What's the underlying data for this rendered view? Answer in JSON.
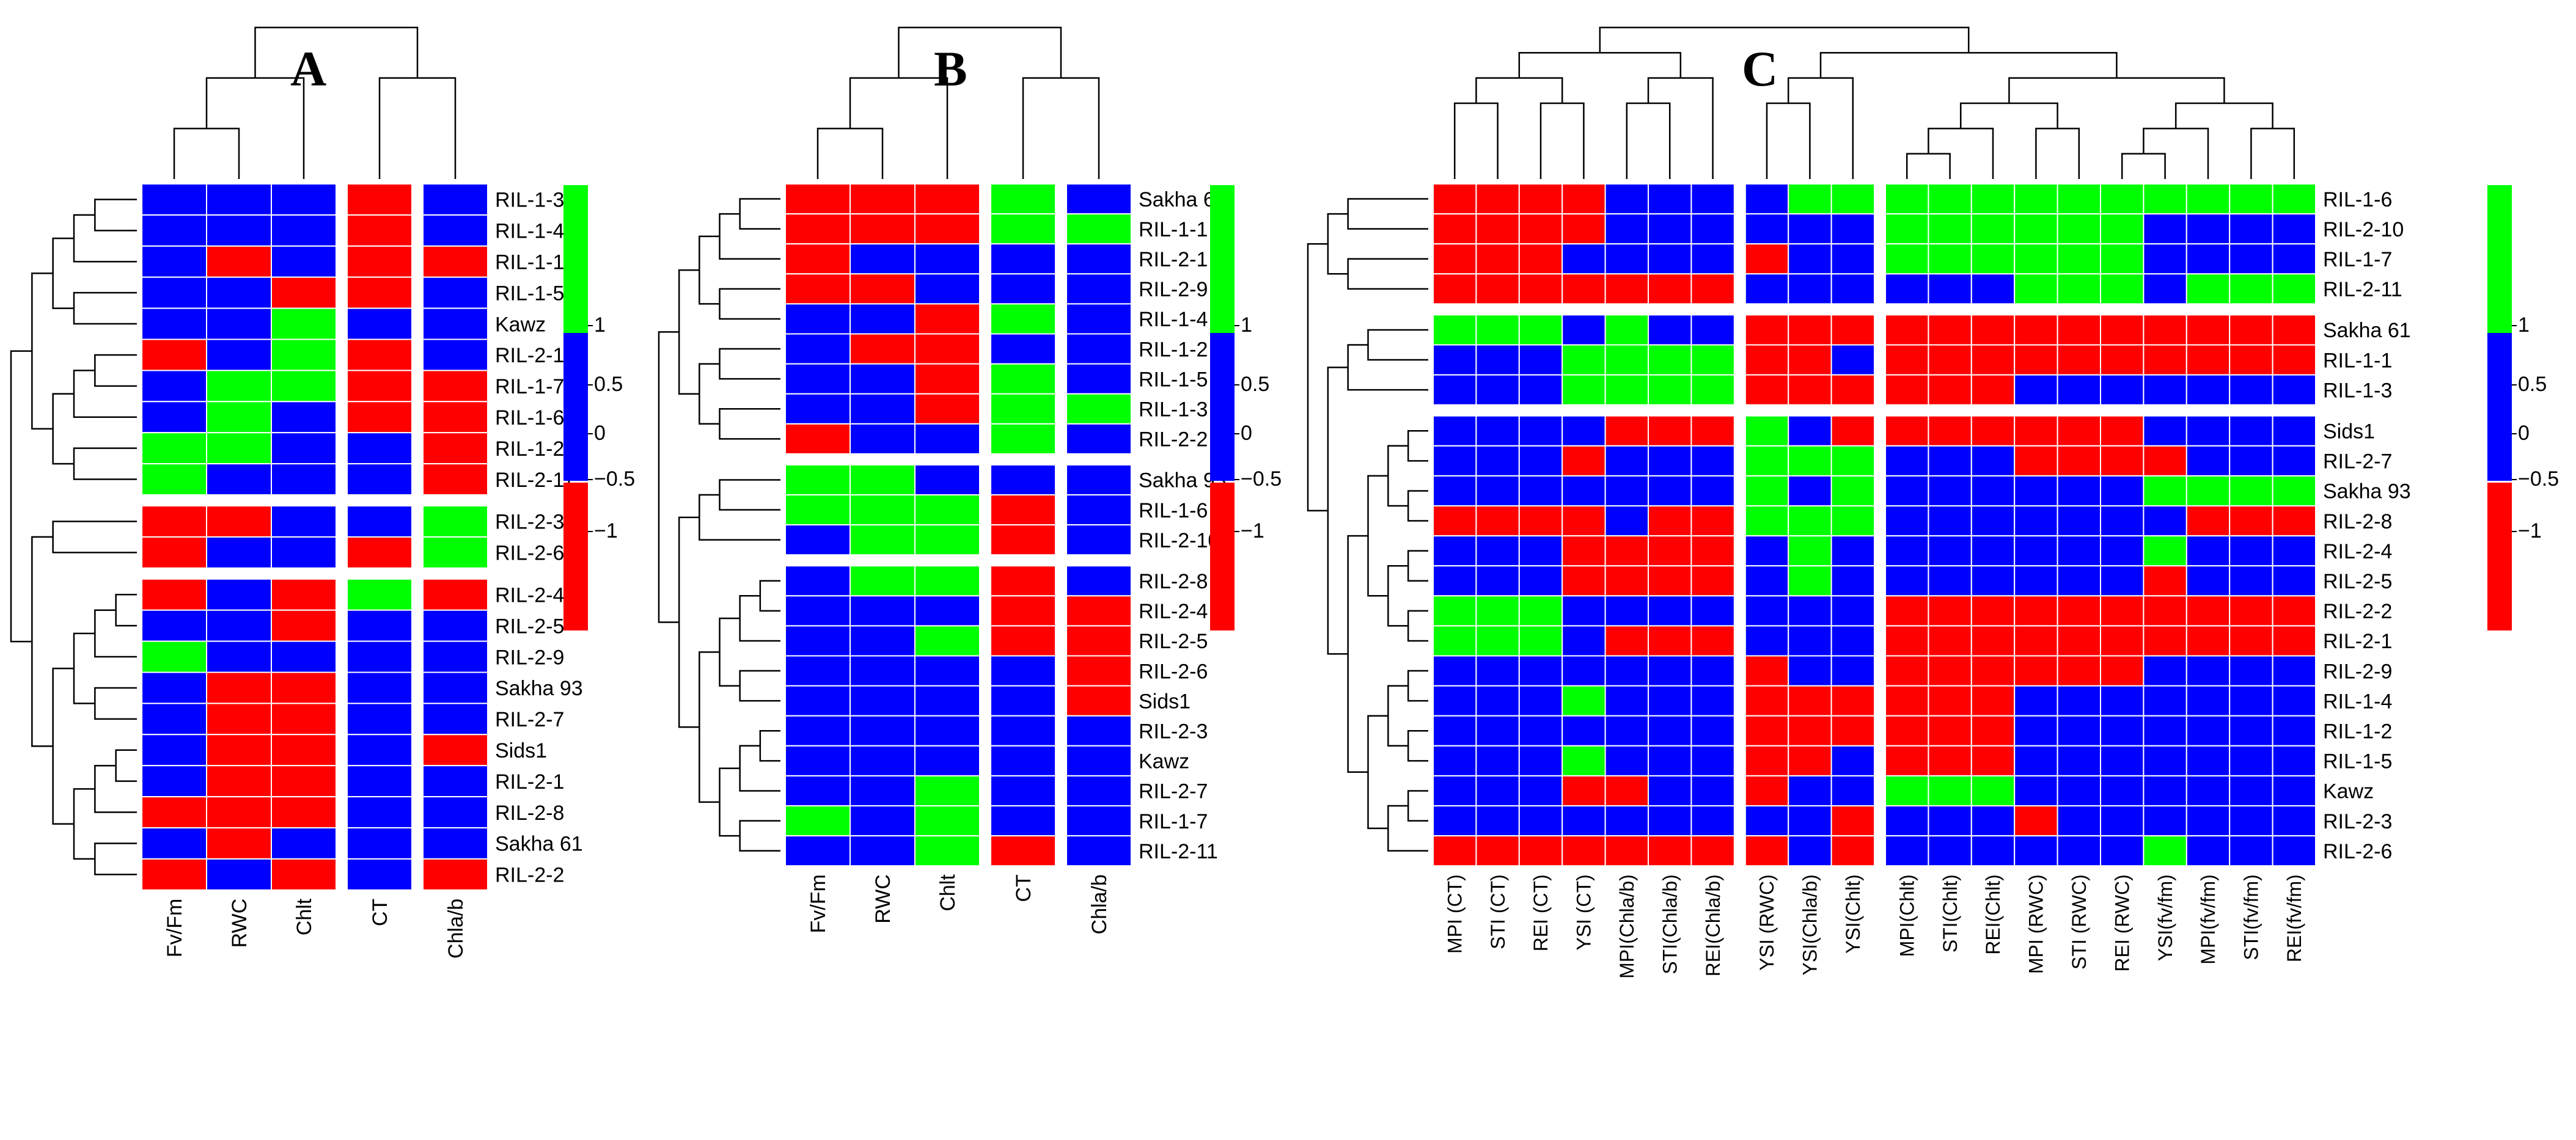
{
  "chart_data": [
    {
      "type": "heatmap",
      "title": "A",
      "columns": [
        "Fv/Fm",
        "RWC",
        "Chlt",
        "CT",
        "Chla/b"
      ],
      "column_groups": [
        3,
        1,
        1
      ],
      "rows": [
        "RIL-1-3",
        "RIL-1-4",
        "RIL-1-1",
        "RIL-1-5",
        "Kawz",
        "RIL-2-10",
        "RIL-1-7",
        "RIL-1-6",
        "RIL-1-2",
        "RIL-2-11",
        "RIL-2-3",
        "RIL-2-6",
        "RIL-2-4",
        "RIL-2-5",
        "RIL-2-9",
        "Sakha 93",
        "RIL-2-7",
        "Sids1",
        "RIL-2-1",
        "RIL-2-8",
        "Sakha 61",
        "RIL-2-2"
      ],
      "row_groups": [
        10,
        2,
        10
      ],
      "values": [
        [
          0,
          0,
          0,
          -1,
          0
        ],
        [
          0,
          0,
          0,
          -1,
          0
        ],
        [
          0,
          -1,
          0,
          -1,
          -1
        ],
        [
          0,
          0,
          -1,
          -1,
          0
        ],
        [
          0,
          0,
          1,
          0,
          0
        ],
        [
          -1,
          0,
          1,
          -1,
          0
        ],
        [
          0,
          1,
          1,
          -1,
          -1
        ],
        [
          0,
          1,
          0,
          -1,
          -1
        ],
        [
          1,
          1,
          0,
          0,
          -1
        ],
        [
          1,
          0,
          0,
          0,
          -1
        ],
        [
          -1,
          -1,
          0,
          0,
          1
        ],
        [
          -1,
          0,
          0,
          -1,
          1
        ],
        [
          -1,
          0,
          -1,
          1,
          -1
        ],
        [
          0,
          0,
          -1,
          0,
          0
        ],
        [
          1,
          0,
          0,
          0,
          0
        ],
        [
          0,
          -1,
          -1,
          0,
          0
        ],
        [
          0,
          -1,
          -1,
          0,
          0
        ],
        [
          0,
          -1,
          -1,
          0,
          -1
        ],
        [
          0,
          -1,
          -1,
          0,
          0
        ],
        [
          -1,
          -1,
          -1,
          0,
          0
        ],
        [
          0,
          -1,
          0,
          0,
          0
        ],
        [
          -1,
          0,
          -1,
          0,
          -1
        ]
      ],
      "legend_ticks": [
        "1",
        "0.5",
        "0",
        "−0.5",
        "−1"
      ]
    },
    {
      "type": "heatmap",
      "title": "B",
      "columns": [
        "Fv/Fm",
        "RWC",
        "Chlt",
        "CT",
        "Chla/b"
      ],
      "column_groups": [
        3,
        1,
        1
      ],
      "rows": [
        "Sakha 61",
        "RIL-1-1",
        "RIL-2-1",
        "RIL-2-9",
        "RIL-1-4",
        "RIL-1-2",
        "RIL-1-5",
        "RIL-1-3",
        "RIL-2-2",
        "Sakha 93",
        "RIL-1-6",
        "RIL-2-10",
        "RIL-2-8",
        "RIL-2-4",
        "RIL-2-5",
        "RIL-2-6",
        "Sids1",
        "RIL-2-3",
        "Kawz",
        "RIL-2-7",
        "RIL-1-7",
        "RIL-2-11"
      ],
      "row_groups": [
        9,
        3,
        10
      ],
      "values": [
        [
          -1,
          -1,
          -1,
          1,
          0
        ],
        [
          -1,
          -1,
          -1,
          1,
          1
        ],
        [
          -1,
          0,
          0,
          0,
          0
        ],
        [
          -1,
          -1,
          0,
          0,
          0
        ],
        [
          0,
          0,
          -1,
          1,
          0
        ],
        [
          0,
          -1,
          -1,
          0,
          0
        ],
        [
          0,
          0,
          -1,
          1,
          0
        ],
        [
          0,
          0,
          -1,
          1,
          1
        ],
        [
          -1,
          0,
          0,
          1,
          0
        ],
        [
          1,
          1,
          0,
          0,
          0
        ],
        [
          1,
          1,
          1,
          -1,
          0
        ],
        [
          0,
          1,
          1,
          -1,
          0
        ],
        [
          0,
          1,
          1,
          -1,
          0
        ],
        [
          0,
          0,
          0,
          -1,
          -1
        ],
        [
          0,
          0,
          1,
          -1,
          -1
        ],
        [
          0,
          0,
          0,
          0,
          -1
        ],
        [
          0,
          0,
          0,
          0,
          -1
        ],
        [
          0,
          0,
          0,
          0,
          0
        ],
        [
          0,
          0,
          0,
          0,
          0
        ],
        [
          0,
          0,
          1,
          0,
          0
        ],
        [
          1,
          0,
          1,
          0,
          0
        ],
        [
          0,
          0,
          1,
          -1,
          0
        ]
      ],
      "legend_ticks": [
        "1",
        "0.5",
        "0",
        "−0.5",
        "−1"
      ]
    },
    {
      "type": "heatmap",
      "title": "C",
      "columns": [
        "MPI (CT)",
        "STI (CT)",
        "REI (CT)",
        "YSI (CT)",
        "MPI(Chla/b)",
        "STI(Chla/b)",
        "REI(Chla/b)",
        "YSI (RWC)",
        "YSI(Chla/b)",
        "YSI(Chlt)",
        "MPI(Chlt)",
        "STI(Chlt)",
        "REI(Chlt)",
        "MPI (RWC)",
        "STI (RWC)",
        "REI (RWC)",
        "YSI(fv/fm)",
        "MPI(fv/fm)",
        "STI(fv/fm)",
        "REI(fv/fm)"
      ],
      "column_groups": [
        7,
        3,
        10
      ],
      "rows": [
        "RIL-1-6",
        "RIL-2-10",
        "RIL-1-7",
        "RIL-2-11",
        "Sakha 61",
        "RIL-1-1",
        "RIL-1-3",
        "Sids1",
        "RIL-2-7",
        "Sakha 93",
        "RIL-2-8",
        "RIL-2-4",
        "RIL-2-5",
        "RIL-2-2",
        "RIL-2-1",
        "RIL-2-9",
        "RIL-1-4",
        "RIL-1-2",
        "RIL-1-5",
        "Kawz",
        "RIL-2-3",
        "RIL-2-6"
      ],
      "row_groups": [
        4,
        3,
        15
      ],
      "values": [
        [
          -1,
          -1,
          -1,
          -1,
          0,
          0,
          0,
          0,
          1,
          1,
          1,
          1,
          1,
          1,
          1,
          1,
          1,
          1,
          1,
          1
        ],
        [
          -1,
          -1,
          -1,
          -1,
          0,
          0,
          0,
          0,
          0,
          0,
          1,
          1,
          1,
          1,
          1,
          1,
          0,
          0,
          0,
          0
        ],
        [
          -1,
          -1,
          -1,
          0,
          0,
          0,
          0,
          -1,
          0,
          0,
          1,
          1,
          1,
          1,
          1,
          1,
          0,
          0,
          0,
          0
        ],
        [
          -1,
          -1,
          -1,
          -1,
          -1,
          -1,
          -1,
          0,
          0,
          0,
          0,
          0,
          0,
          1,
          1,
          1,
          0,
          1,
          1,
          1
        ],
        [
          1,
          1,
          1,
          0,
          1,
          0,
          0,
          -1,
          -1,
          -1,
          -1,
          -1,
          -1,
          -1,
          -1,
          -1,
          -1,
          -1,
          -1,
          -1
        ],
        [
          0,
          0,
          0,
          1,
          1,
          1,
          1,
          -1,
          -1,
          0,
          -1,
          -1,
          -1,
          -1,
          -1,
          -1,
          -1,
          -1,
          -1,
          -1
        ],
        [
          0,
          0,
          0,
          1,
          1,
          1,
          1,
          -1,
          -1,
          -1,
          -1,
          -1,
          -1,
          0,
          0,
          0,
          0,
          0,
          0,
          0
        ],
        [
          0,
          0,
          0,
          0,
          -1,
          -1,
          -1,
          1,
          0,
          -1,
          -1,
          -1,
          -1,
          -1,
          -1,
          -1,
          0,
          0,
          0,
          0
        ],
        [
          0,
          0,
          0,
          -1,
          0,
          0,
          0,
          1,
          1,
          1,
          0,
          0,
          0,
          -1,
          -1,
          -1,
          -1,
          0,
          0,
          0
        ],
        [
          0,
          0,
          0,
          0,
          0,
          0,
          0,
          1,
          0,
          1,
          0,
          0,
          0,
          0,
          0,
          0,
          1,
          1,
          1,
          1
        ],
        [
          -1,
          -1,
          -1,
          -1,
          0,
          -1,
          -1,
          1,
          1,
          1,
          0,
          0,
          0,
          0,
          0,
          0,
          0,
          -1,
          -1,
          -1
        ],
        [
          0,
          0,
          0,
          -1,
          -1,
          -1,
          -1,
          0,
          1,
          0,
          0,
          0,
          0,
          0,
          0,
          0,
          1,
          0,
          0,
          0
        ],
        [
          0,
          0,
          0,
          -1,
          -1,
          -1,
          -1,
          0,
          1,
          0,
          0,
          0,
          0,
          0,
          0,
          0,
          -1,
          0,
          0,
          0
        ],
        [
          1,
          1,
          1,
          0,
          0,
          0,
          0,
          0,
          0,
          0,
          -1,
          -1,
          -1,
          -1,
          -1,
          -1,
          -1,
          -1,
          -1,
          -1
        ],
        [
          1,
          1,
          1,
          0,
          -1,
          -1,
          -1,
          0,
          0,
          0,
          -1,
          -1,
          -1,
          -1,
          -1,
          -1,
          -1,
          -1,
          -1,
          -1
        ],
        [
          0,
          0,
          0,
          0,
          0,
          0,
          0,
          -1,
          0,
          0,
          -1,
          -1,
          -1,
          -1,
          -1,
          -1,
          0,
          0,
          0,
          0
        ],
        [
          0,
          0,
          0,
          1,
          0,
          0,
          0,
          -1,
          -1,
          -1,
          -1,
          -1,
          -1,
          0,
          0,
          0,
          0,
          0,
          0,
          0
        ],
        [
          0,
          0,
          0,
          0,
          0,
          0,
          0,
          -1,
          -1,
          -1,
          -1,
          -1,
          -1,
          0,
          0,
          0,
          0,
          0,
          0,
          0
        ],
        [
          0,
          0,
          0,
          1,
          0,
          0,
          0,
          -1,
          -1,
          0,
          -1,
          -1,
          -1,
          0,
          0,
          0,
          0,
          0,
          0,
          0
        ],
        [
          0,
          0,
          0,
          -1,
          -1,
          0,
          0,
          -1,
          0,
          0,
          1,
          1,
          1,
          0,
          0,
          0,
          0,
          0,
          0,
          0
        ],
        [
          0,
          0,
          0,
          0,
          0,
          0,
          0,
          0,
          0,
          -1,
          0,
          0,
          0,
          -1,
          0,
          0,
          0,
          0,
          0,
          0
        ],
        [
          -1,
          -1,
          -1,
          -1,
          -1,
          -1,
          -1,
          -1,
          0,
          -1,
          0,
          0,
          0,
          0,
          0,
          0,
          1,
          0,
          0,
          0
        ]
      ],
      "legend_ticks": [
        "1",
        "0.5",
        "0",
        "−0.5",
        "−1"
      ]
    }
  ],
  "colors": {
    "high": "#00ff00",
    "mid": "#0000ff",
    "low": "#ff0000",
    "grid": "#ffffff",
    "line": "#000000"
  }
}
